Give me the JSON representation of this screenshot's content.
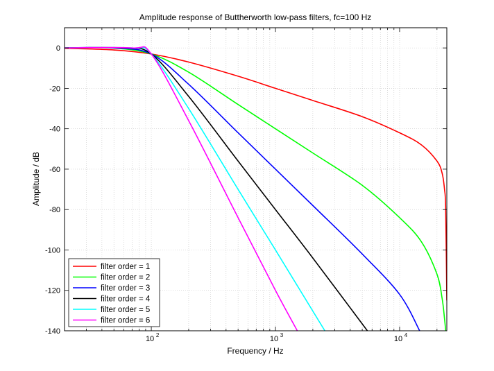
{
  "chart_data": {
    "type": "line",
    "title": "Amplitude response of Buttherworth low-pass filters, fc=100 Hz",
    "xlabel": "Frequency / Hz",
    "ylabel": "Amplitude / dB",
    "xscale": "log",
    "xlim": [
      20,
      24000
    ],
    "ylim": [
      -140,
      10
    ],
    "yticks": [
      0,
      -20,
      -40,
      -60,
      -80,
      -100,
      -120,
      -140
    ],
    "ytick_labels": [
      "0",
      "-20",
      "-40",
      "-60",
      "-80",
      "-100",
      "-120",
      "-140"
    ],
    "xticks": [
      100,
      1000,
      10000
    ],
    "xtick_labels": [
      {
        "base": "10",
        "exp": "2"
      },
      {
        "base": "10",
        "exp": "3"
      },
      {
        "base": "10",
        "exp": "4"
      }
    ],
    "grid": true,
    "legend_position": "bottom-left",
    "series": [
      {
        "name": "filter order = 1",
        "color": "#ff0000",
        "x": [
          20,
          50,
          100,
          200,
          500,
          1000,
          2000,
          5000,
          10000,
          15000,
          20000,
          22000,
          23000,
          23500,
          24000
        ],
        "y": [
          -0.2,
          -1,
          -3,
          -7,
          -14,
          -20,
          -26,
          -34,
          -42,
          -48,
          -56,
          -62,
          -70,
          -80,
          -125
        ]
      },
      {
        "name": "filter order = 2",
        "color": "#00ff00",
        "x": [
          20,
          50,
          100,
          200,
          500,
          1000,
          2000,
          5000,
          10000,
          15000,
          20000,
          22000,
          23000,
          23500
        ],
        "y": [
          0,
          -0.1,
          -3,
          -12,
          -28,
          -40,
          -52,
          -68,
          -84,
          -96,
          -112,
          -124,
          -134,
          -140
        ]
      },
      {
        "name": "filter order = 3",
        "color": "#0000ff",
        "x": [
          20,
          50,
          100,
          200,
          500,
          1000,
          2000,
          5000,
          10000,
          14500
        ],
        "y": [
          0,
          0,
          -3,
          -18,
          -42,
          -60,
          -78,
          -102,
          -122,
          -140
        ]
      },
      {
        "name": "filter order = 4",
        "color": "#000000",
        "x": [
          20,
          60,
          100,
          200,
          500,
          1000,
          2000,
          5500
        ],
        "y": [
          0,
          0,
          -3,
          -24,
          -56,
          -80,
          -104,
          -140
        ]
      },
      {
        "name": "filter order = 5",
        "color": "#00ffff",
        "x": [
          20,
          70,
          100,
          200,
          500,
          1000,
          2500
        ],
        "y": [
          0,
          0,
          -3,
          -30,
          -70,
          -100,
          -140
        ]
      },
      {
        "name": "filter order = 6",
        "color": "#ff00ff",
        "x": [
          20,
          70,
          100,
          200,
          500,
          1000,
          1500
        ],
        "y": [
          0,
          0,
          -3,
          -36,
          -84,
          -120,
          -140
        ]
      }
    ]
  }
}
